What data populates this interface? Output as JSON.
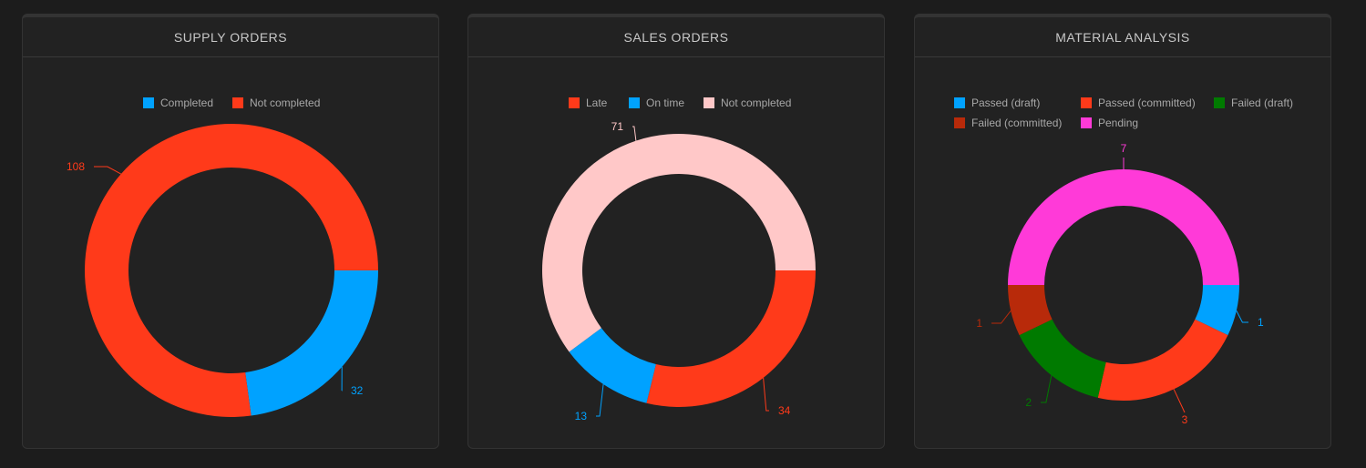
{
  "chart_data": [
    {
      "type": "pie",
      "title": "SUPPLY ORDERS",
      "donut": true,
      "legend_position": "top",
      "series": [
        {
          "name": "Completed",
          "value": 32,
          "color": "#00a2ff"
        },
        {
          "name": "Not completed",
          "value": 108,
          "color": "#ff3a1a"
        }
      ]
    },
    {
      "type": "pie",
      "title": "SALES ORDERS",
      "donut": true,
      "legend_position": "top",
      "series": [
        {
          "name": "Late",
          "value": 34,
          "color": "#ff3a1a"
        },
        {
          "name": "On time",
          "value": 13,
          "color": "#00a2ff"
        },
        {
          "name": "Not completed",
          "value": 71,
          "color": "#ffc8c8"
        }
      ]
    },
    {
      "type": "pie",
      "title": "MATERIAL ANALYSIS",
      "donut": true,
      "legend_position": "top",
      "series": [
        {
          "name": "Passed (draft)",
          "value": 1,
          "color": "#00a2ff"
        },
        {
          "name": "Passed (committed)",
          "value": 3,
          "color": "#ff3a1a"
        },
        {
          "name": "Failed (draft)",
          "value": 2,
          "color": "#007a00"
        },
        {
          "name": "Failed (committed)",
          "value": 1,
          "color": "#b82a0a"
        },
        {
          "name": "Pending",
          "value": 7,
          "color": "#ff3ad8"
        }
      ]
    }
  ]
}
